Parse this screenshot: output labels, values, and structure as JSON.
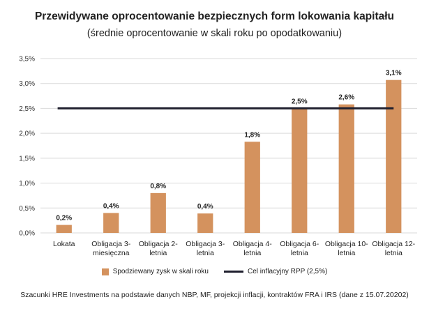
{
  "chart_data": {
    "type": "bar",
    "title": "Przewidywane oprocentowanie bezpiecznych form lokowania kapitału",
    "subtitle": "(średnie oprocentowanie w skali roku po opodatkowaniu)",
    "categories": [
      [
        "Lokata"
      ],
      [
        "Obligacja 3-",
        "miesięczna"
      ],
      [
        "Obligacja 2-",
        "letnia"
      ],
      [
        "Obligacja 3-",
        "letnia"
      ],
      [
        "Obligacja 4-",
        "letnia"
      ],
      [
        "Obligacja 6-",
        "letnia"
      ],
      [
        "Obligacja 10-",
        "letnia"
      ],
      [
        "Obligacja 12-",
        "letnia"
      ]
    ],
    "series": [
      {
        "name": "Spodziewany zysk w skali roku",
        "values": [
          0.16,
          0.4,
          0.8,
          0.39,
          1.83,
          2.5,
          2.58,
          3.07
        ],
        "data_labels": [
          "0,2%",
          "0,4%",
          "0,8%",
          "0,4%",
          "1,8%",
          "2,5%",
          "2,6%",
          "3,1%"
        ],
        "color": "#d4925e"
      }
    ],
    "reference_line": {
      "name": "Cel inflacyjny RPP (2,5%)",
      "value": 2.5,
      "color": "#1f1f2e"
    },
    "ylim": [
      0,
      3.5
    ],
    "yticks": [
      0,
      0.5,
      1.0,
      1.5,
      2.0,
      2.5,
      3.0,
      3.5
    ],
    "ytick_labels": [
      "0,0%",
      "0,5%",
      "1,0%",
      "1,5%",
      "2,0%",
      "2,5%",
      "3,0%",
      "3,5%"
    ],
    "grid": true,
    "legend_position": "bottom",
    "footnote": "Szacunki HRE Investments na podstawie danych NBP, MF, projekcji inflacji, kontraktów FRA i IRS (dane z 15.07.20202)"
  }
}
